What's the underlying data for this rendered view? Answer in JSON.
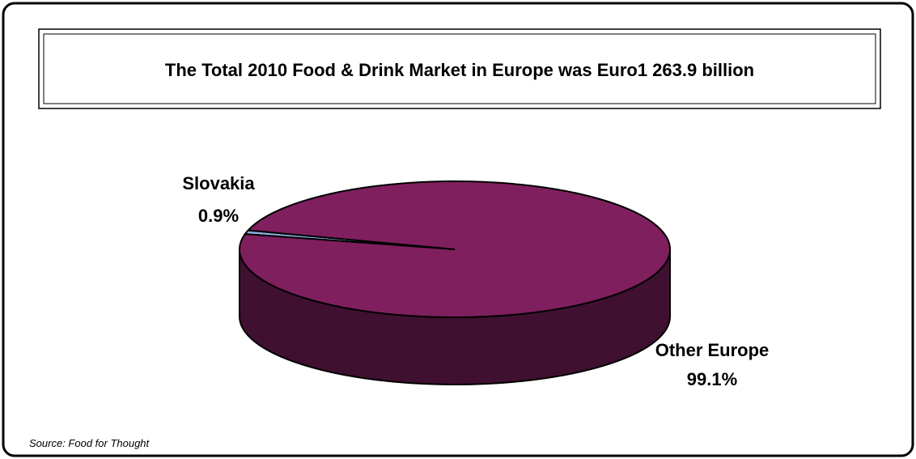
{
  "chart_data": {
    "type": "pie",
    "title": "The Total 2010 Food & Drink Market in Europe was Euro1 263.9 billion",
    "slices": [
      {
        "label": "Slovakia",
        "value": 0.9,
        "value_label": "0.9%",
        "color": "#8fb0e0"
      },
      {
        "label": "Other Europe",
        "value": 99.1,
        "value_label": "99.1%",
        "color": "#7f1f5e"
      }
    ],
    "three_d": true,
    "legend": "none"
  },
  "footer": {
    "source": "Source: Food for Thought"
  },
  "colors": {
    "top_main": "#7f1f5e",
    "side_main": "#401030",
    "slice_small": "#8fb0e0"
  }
}
